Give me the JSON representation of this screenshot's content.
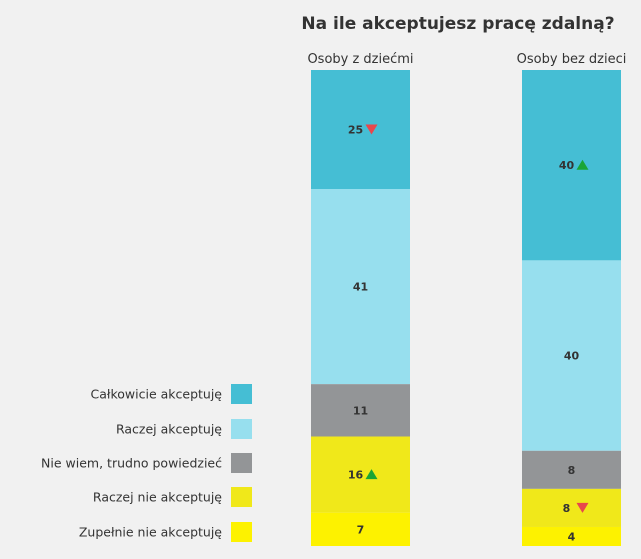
{
  "chart_data": {
    "type": "bar",
    "stacked": true,
    "orientation": "vertical",
    "title": "Na ile akceptujesz pracę zdalną?",
    "categories": [
      "Osoby z dziećmi",
      "Osoby bez dzieci"
    ],
    "series": [
      {
        "name": "Całkowicie akceptuję",
        "color": "#45bed4",
        "values": [
          25,
          40
        ],
        "trend": [
          "down",
          "up"
        ]
      },
      {
        "name": "Raczej akceptuję",
        "color": "#97dfee",
        "values": [
          41,
          40
        ],
        "trend": [
          null,
          null
        ]
      },
      {
        "name": "Nie wiem, trudno powiedzieć",
        "color": "#939597",
        "values": [
          11,
          8
        ],
        "trend": [
          null,
          null
        ]
      },
      {
        "name": "Raczej nie akceptuję",
        "color": "#f0e81a",
        "values": [
          16,
          8
        ],
        "trend": [
          "up",
          "down"
        ]
      },
      {
        "name": "Zupełnie nie akceptuję",
        "color": "#fdf200",
        "values": [
          7,
          4
        ],
        "trend": [
          null,
          null
        ]
      }
    ],
    "trend_colors": {
      "up": "#1aa535",
      "down": "#e8474c"
    },
    "legend_position": "left",
    "ylim": [
      0,
      100
    ],
    "grid": false
  }
}
